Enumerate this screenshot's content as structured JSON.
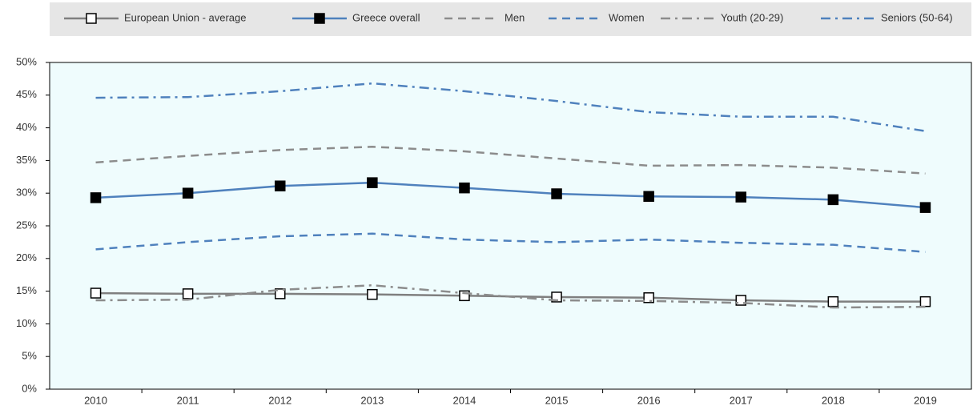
{
  "chart_data": {
    "type": "line",
    "categories": [
      "2010",
      "2011",
      "2012",
      "2013",
      "2014",
      "2015",
      "2016",
      "2017",
      "2018",
      "2019"
    ],
    "series": [
      {
        "name": "European Union - average",
        "color": "#7f7f7f",
        "dash": "solid",
        "marker": "open-square",
        "values": [
          14.7,
          14.6,
          14.6,
          14.5,
          14.3,
          14.1,
          14.0,
          13.6,
          13.4,
          13.4
        ]
      },
      {
        "name": "Greece overall",
        "color": "#4f81bd",
        "dash": "solid",
        "marker": "filled-square",
        "values": [
          29.3,
          30.0,
          31.1,
          31.6,
          30.8,
          29.9,
          29.5,
          29.4,
          29.0,
          27.8
        ]
      },
      {
        "name": "Men",
        "color": "#8c8c8c",
        "dash": "dashed",
        "marker": "none",
        "values": [
          34.7,
          35.7,
          36.6,
          37.1,
          36.4,
          35.3,
          34.2,
          34.3,
          33.9,
          33.0
        ]
      },
      {
        "name": "Women",
        "color": "#4f81bd",
        "dash": "dashed",
        "marker": "none",
        "values": [
          21.4,
          22.5,
          23.4,
          23.8,
          22.9,
          22.5,
          22.9,
          22.4,
          22.1,
          21.0
        ]
      },
      {
        "name": "Youth (20-29)",
        "color": "#8c8c8c",
        "dash": "dash-dot",
        "marker": "none",
        "values": [
          13.6,
          13.7,
          15.2,
          15.9,
          14.7,
          13.6,
          13.5,
          13.2,
          12.5,
          12.6
        ]
      },
      {
        "name": "Seniors (50-64)",
        "color": "#4f81bd",
        "dash": "dash-dot",
        "marker": "none",
        "values": [
          44.6,
          44.7,
          45.6,
          46.8,
          45.6,
          44.1,
          42.4,
          41.7,
          41.7,
          39.5
        ]
      }
    ],
    "ylim": [
      0,
      50
    ],
    "yticks": [
      {
        "value": 0,
        "label": "0%"
      },
      {
        "value": 5,
        "label": "5%"
      },
      {
        "value": 10,
        "label": "10%"
      },
      {
        "value": 15,
        "label": "15%"
      },
      {
        "value": 20,
        "label": "20%"
      },
      {
        "value": 25,
        "label": "25%"
      },
      {
        "value": 30,
        "label": "30%"
      },
      {
        "value": 35,
        "label": "35%"
      },
      {
        "value": 40,
        "label": "40%"
      },
      {
        "value": 45,
        "label": "45%"
      },
      {
        "value": 50,
        "label": "50%"
      }
    ],
    "legend": "top"
  }
}
